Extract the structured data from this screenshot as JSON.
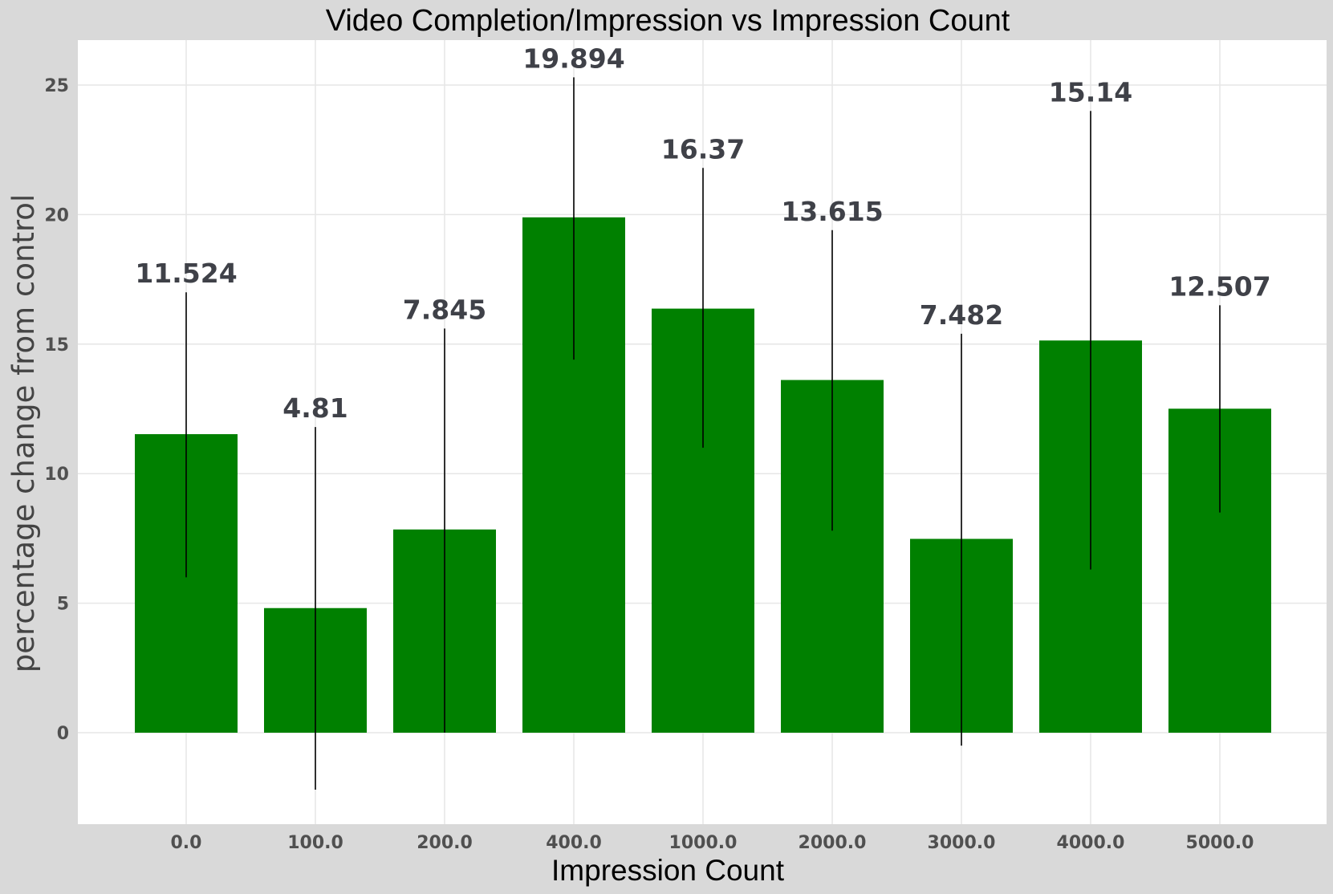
{
  "chart_data": {
    "type": "bar",
    "title": "Video Completion/Impression vs Impression Count",
    "xlabel": "Impression Count",
    "ylabel": "percentage change from control",
    "categories": [
      "0.0",
      "100.0",
      "200.0",
      "400.0",
      "1000.0",
      "2000.0",
      "3000.0",
      "4000.0",
      "5000.0"
    ],
    "values": [
      11.524,
      4.81,
      7.845,
      19.894,
      16.37,
      13.615,
      7.482,
      15.14,
      12.507
    ],
    "value_labels": [
      "11.524",
      "4.81",
      "7.845",
      "19.894",
      "16.37",
      "13.615",
      "7.482",
      "15.14",
      "12.507"
    ],
    "error_low": [
      6.0,
      -2.2,
      0.0,
      14.4,
      11.0,
      7.8,
      -0.5,
      6.3,
      8.5
    ],
    "error_high": [
      17.0,
      11.8,
      15.6,
      25.3,
      21.8,
      19.4,
      15.4,
      24.0,
      16.5
    ],
    "yticks": [
      0,
      5,
      10,
      15,
      20,
      25
    ],
    "ylim": [
      -3.5,
      26.8
    ],
    "grid": true,
    "colors": {
      "bar": "#008000",
      "background": "#d9d9d9",
      "plot": "#ffffff"
    }
  }
}
